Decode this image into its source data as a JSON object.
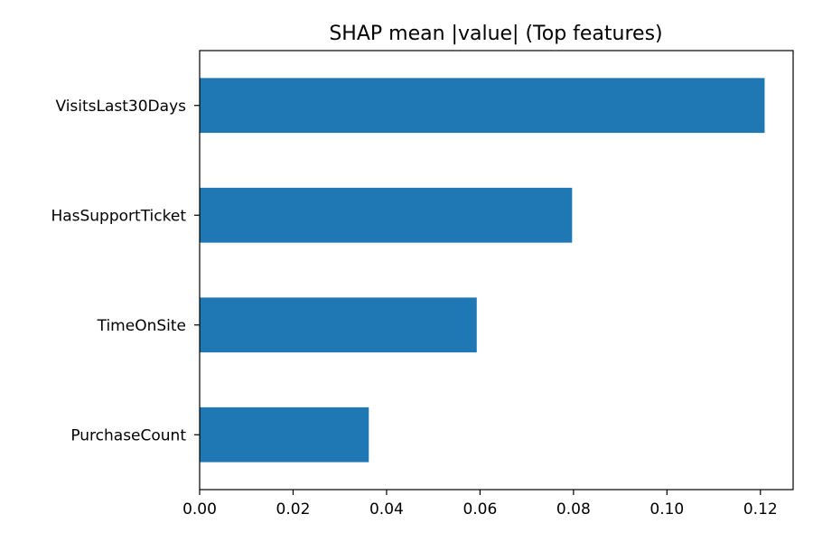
{
  "chart_data": {
    "type": "bar",
    "orientation": "horizontal",
    "title": "SHAP mean |value| (Top features)",
    "xlabel": "",
    "ylabel": "",
    "categories": [
      "PurchaseCount",
      "TimeOnSite",
      "HasSupportTicket",
      "VisitsLast30Days"
    ],
    "values": [
      0.0362,
      0.0593,
      0.0797,
      0.1209
    ],
    "xlim": [
      0,
      0.127
    ],
    "xticks": [
      0.0,
      0.02,
      0.04,
      0.06,
      0.08,
      0.1,
      0.12
    ],
    "xtick_labels": [
      "0.00",
      "0.02",
      "0.04",
      "0.06",
      "0.08",
      "0.10",
      "0.12"
    ],
    "grid": false,
    "legend": "none",
    "bar_color": "#1f77b4"
  }
}
